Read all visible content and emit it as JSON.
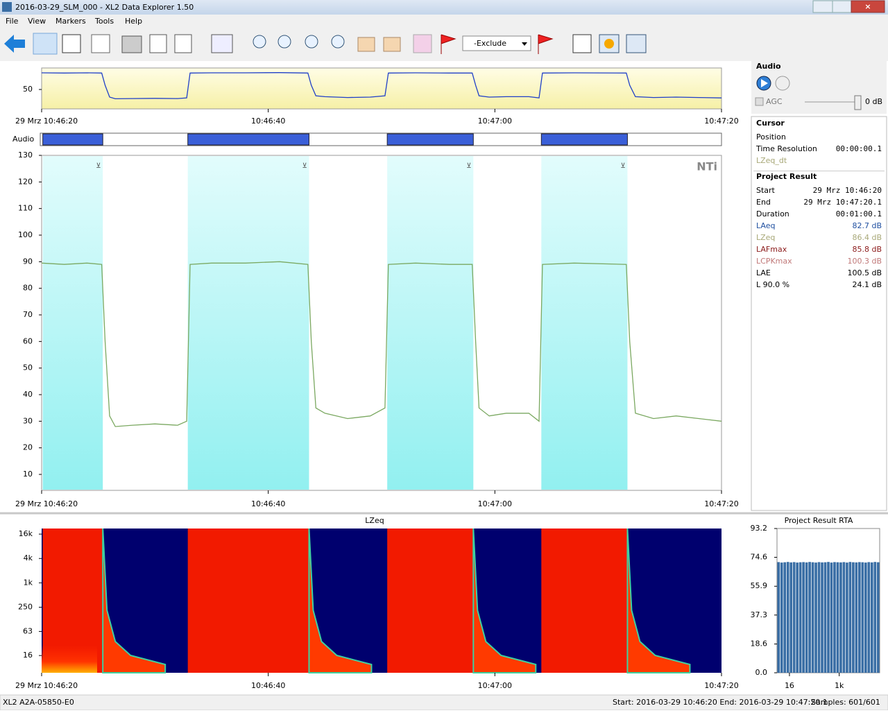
{
  "window": {
    "title": "2016-03-29_SLM_000 - XL2 Data Explorer 1.50"
  },
  "menu": [
    "File",
    "View",
    "Markers",
    "Tools",
    "Help"
  ],
  "toolbar": {
    "exclude_dropdown": "-Exclude"
  },
  "time_axis": {
    "xlim": [
      0,
      60
    ],
    "xticks": [
      {
        "value": 0,
        "label": "29 Mrz 10:46:20"
      },
      {
        "value": 20,
        "label": "10:46:40"
      },
      {
        "value": 40,
        "label": "10:47:00"
      },
      {
        "value": 60,
        "label": "10:47:20"
      }
    ]
  },
  "audio_label": "Audio",
  "audio_segments": [
    [
      0.1,
      5.4
    ],
    [
      12.9,
      23.6
    ],
    [
      30.5,
      38.1
    ],
    [
      44.1,
      51.7
    ]
  ],
  "level": {
    "type": "line",
    "color": "#7aa860",
    "x": [
      0,
      2,
      4,
      5.3,
      5.6,
      6,
      6.5,
      8,
      10,
      12,
      12.8,
      13.1,
      15,
      18,
      21,
      23.5,
      23.8,
      24.2,
      25,
      27,
      29,
      30.3,
      30.6,
      33,
      36,
      38,
      38.3,
      38.6,
      39.5,
      41,
      43,
      43.9,
      44.2,
      47,
      51.6,
      51.9,
      52.4,
      54,
      56,
      58,
      60
    ],
    "values": [
      89.5,
      89,
      89.5,
      89,
      60,
      32,
      28,
      28.5,
      29,
      28.5,
      30,
      89,
      89.5,
      89.5,
      90,
      89,
      60,
      35,
      33,
      31,
      32,
      35,
      89,
      89.5,
      89,
      89,
      60,
      35,
      32,
      33,
      33,
      30,
      89,
      89.5,
      89,
      60,
      33,
      31,
      32,
      31,
      30
    ]
  },
  "overview": {
    "ylim": [
      4,
      101
    ],
    "yticks": [
      50
    ]
  },
  "main_chart": {
    "ylim": [
      4,
      130
    ],
    "yticks": [
      10,
      20,
      30,
      40,
      50,
      60,
      70,
      80,
      90,
      100,
      110,
      120,
      130
    ],
    "logo": "NTi"
  },
  "spectrogram": {
    "title": "LZeq",
    "log": true,
    "ylim": [
      6,
      22000
    ],
    "yticks": [
      {
        "value": 16000,
        "label": "16k"
      },
      {
        "value": 4000,
        "label": "4k"
      },
      {
        "value": 1000,
        "label": "1k"
      },
      250,
      63,
      16
    ]
  },
  "rta": {
    "type": "bar",
    "title": "Project Result RTA",
    "color": "#3a6ea5",
    "xlim": [
      0,
      33
    ],
    "ylim": [
      0,
      93.2
    ],
    "yticks": [
      {
        "value": 0,
        "label": "0.0"
      },
      18.6,
      37.3,
      55.9,
      74.6,
      93.2
    ],
    "xticks": [
      {
        "value": 4,
        "label": "16"
      },
      {
        "value": 20,
        "label": "1k"
      }
    ],
    "values": [
      71.5,
      71.2,
      71.4,
      71.6,
      71.3,
      71.5,
      71.2,
      71.4,
      71.5,
      71.3,
      71.6,
      71.4,
      71.2,
      71.5,
      71.3,
      71.4,
      71.6,
      71.2,
      71.5,
      71.4,
      71.3,
      71.5,
      71.2,
      71.6,
      71.4,
      71.3,
      71.5,
      71.4,
      71.2,
      71.5,
      71.3,
      71.6,
      71.4
    ]
  },
  "panel": {
    "audio": {
      "title": "Audio",
      "agc": "AGC",
      "gain": "0 dB"
    },
    "cursor": {
      "title": "Cursor",
      "rows": [
        [
          "Position",
          ""
        ],
        [
          "Time Resolution",
          "00:00:00.1"
        ]
      ],
      "channel": "LZeq_dt"
    },
    "result": {
      "title": "Project Result",
      "rows": [
        {
          "name": "Start",
          "value": "29 Mrz 10:46:20",
          "color": "#000000"
        },
        {
          "name": "End",
          "value": "29 Mrz 10:47:20.1",
          "color": "#000000"
        },
        {
          "name": "Duration",
          "value": "00:01:00.1",
          "color": "#000000"
        },
        {
          "name": "LAeq",
          "value": "82.7 dB",
          "color": "#1f4fa0"
        },
        {
          "name": "LZeq",
          "value": "86.4 dB",
          "color": "#a8a878"
        },
        {
          "name": "LAFmax",
          "value": "85.8 dB",
          "color": "#8b1a1a"
        },
        {
          "name": "LCPKmax",
          "value": "100.3 dB",
          "color": "#c07878"
        },
        {
          "name": "LAE",
          "value": "100.5 dB",
          "color": "#000000"
        },
        {
          "name": "L 90.0 %",
          "value": "24.1 dB",
          "color": "#000000"
        }
      ]
    }
  },
  "status": {
    "device": "XL2 A2A-05850-E0",
    "range": "Start: 2016-03-29 10:46:20 End: 2016-03-29 10:47:20.1",
    "samples": "Samples: 601/601"
  }
}
